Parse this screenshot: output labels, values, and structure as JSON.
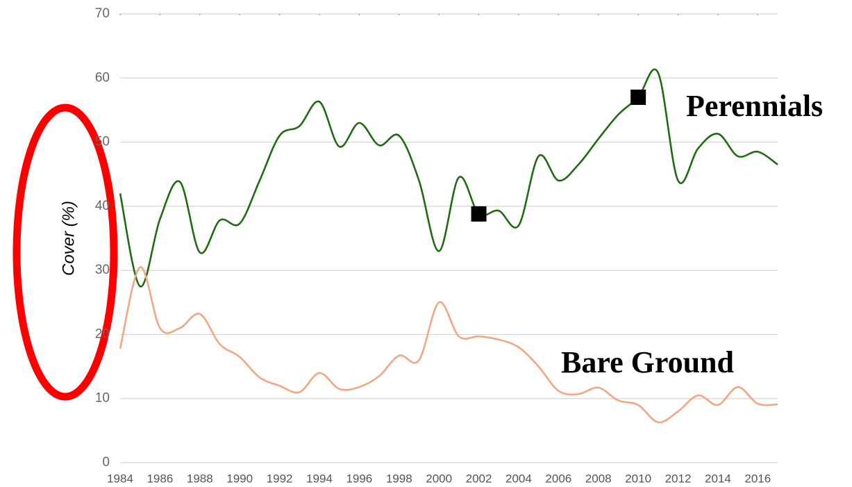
{
  "chart_data": {
    "type": "line",
    "y_label": "Cover (%)",
    "x": [
      1984,
      1985,
      1986,
      1987,
      1988,
      1989,
      1990,
      1991,
      1992,
      1993,
      1994,
      1995,
      1996,
      1997,
      1998,
      1999,
      2000,
      2001,
      2002,
      2003,
      2004,
      2005,
      2006,
      2007,
      2008,
      2009,
      2010,
      2011,
      2012,
      2013,
      2014,
      2015,
      2016,
      2017
    ],
    "series": [
      {
        "name": "Perennials",
        "color": "#1e6b12",
        "values": [
          42,
          27.5,
          38,
          43.8,
          32.8,
          37.8,
          37.3,
          44,
          51,
          52.5,
          56.3,
          49.3,
          53,
          49.5,
          51,
          44,
          33,
          44.5,
          38.8,
          39.3,
          37,
          47.8,
          44,
          46.5,
          50.5,
          54.3,
          57,
          60.8,
          44,
          49,
          51.3,
          47.8,
          48.5,
          46.5
        ]
      },
      {
        "name": "Bare Ground",
        "color": "#f4a582",
        "values": [
          17.8,
          30.5,
          21,
          21,
          23.2,
          18.5,
          16.5,
          13.3,
          12,
          11,
          14,
          11.5,
          11.8,
          13.5,
          16.7,
          16,
          25,
          19.7,
          19.7,
          19.2,
          18,
          15,
          11.2,
          10.7,
          11.7,
          9.7,
          9,
          6.3,
          8,
          10.5,
          9,
          11.8,
          9.2,
          9.1
        ]
      }
    ],
    "markers": [
      {
        "series": 0,
        "index": 18
      },
      {
        "series": 0,
        "index": 26
      }
    ],
    "xlim": [
      1984,
      2017
    ],
    "xticks": [
      1984,
      1986,
      1988,
      1990,
      1992,
      1994,
      1996,
      1998,
      2000,
      2002,
      2004,
      2006,
      2008,
      2010,
      2012,
      2014,
      2016
    ],
    "ylim": [
      0,
      70
    ],
    "yticks": [
      0,
      10,
      20,
      30,
      40,
      50,
      60,
      70
    ],
    "grid": true
  }
}
